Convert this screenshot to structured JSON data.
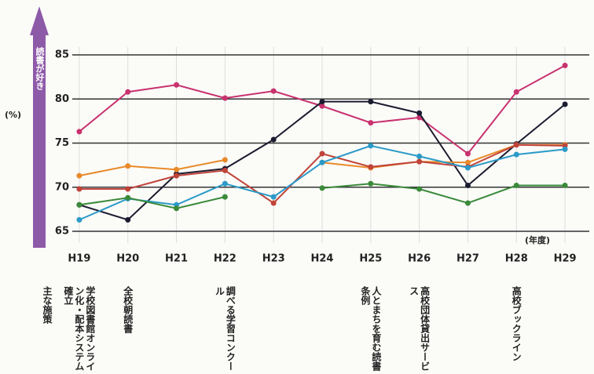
{
  "chart_data": {
    "type": "line",
    "ylabel": "読書が好き",
    "yunit": "(%)",
    "xunit": "(年度)",
    "categories": [
      "H19",
      "H20",
      "H21",
      "H22",
      "H23",
      "H24",
      "H25",
      "H26",
      "H27",
      "H28",
      "H29"
    ],
    "series": [
      {
        "color": "#c8326e",
        "values": [
          76.3,
          80.8,
          81.6,
          80.1,
          80.9,
          79.2,
          77.3,
          77.9,
          73.8,
          80.8,
          83.8
        ]
      },
      {
        "color": "#1c1c30",
        "values": [
          68.0,
          66.3,
          71.5,
          72.1,
          75.4,
          79.7,
          79.7,
          78.4,
          70.2,
          74.9,
          79.4
        ]
      },
      {
        "color": "#e88a2a",
        "values": [
          71.3,
          72.4,
          72.0,
          73.1,
          null,
          72.8,
          72.2,
          72.9,
          72.8,
          74.8,
          74.8
        ]
      },
      {
        "color": "#c0443a",
        "values": [
          69.8,
          69.8,
          71.3,
          71.9,
          68.2,
          73.8,
          72.3,
          72.9,
          72.3,
          74.8,
          74.7
        ]
      },
      {
        "color": "#2a9ac8",
        "values": [
          66.3,
          68.7,
          68.0,
          70.4,
          68.9,
          72.8,
          74.7,
          73.5,
          72.2,
          73.7,
          74.3
        ]
      },
      {
        "color": "#3a8a3a",
        "values": [
          68.0,
          68.8,
          67.6,
          68.9,
          null,
          69.9,
          70.4,
          69.8,
          68.2,
          70.2,
          70.2
        ]
      }
    ],
    "ylim": [
      65,
      85
    ],
    "yticks": [
      65,
      70,
      75,
      80,
      85
    ],
    "grid": true,
    "measures_label": "主な施策",
    "measures": [
      "学校図書館オンライン化・配本システム確立",
      "全校朝読書",
      null,
      "調べる学習コンクール",
      null,
      null,
      "人とまちを育む読書条例",
      "高校団体貸出サービス",
      null,
      "高校ブックライン",
      null
    ]
  }
}
